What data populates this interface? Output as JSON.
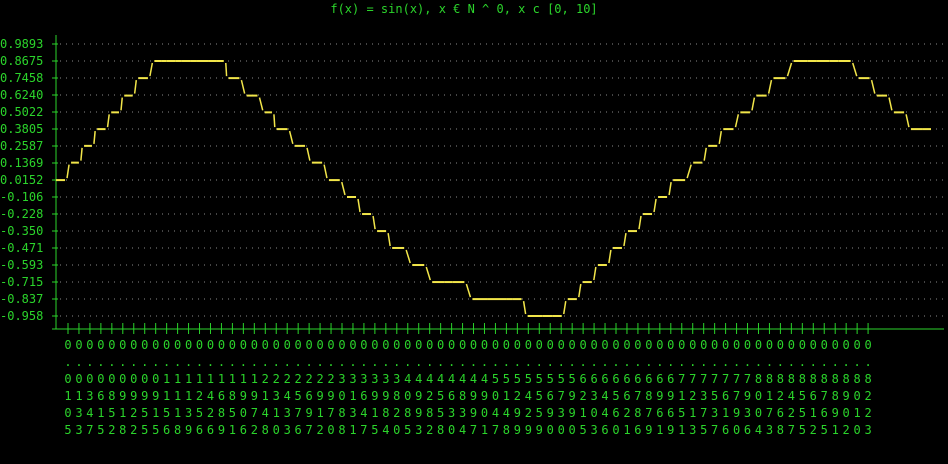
{
  "chart_data": {
    "type": "line",
    "title": "f(x) = sin(x),  x € N ^ 0, x c [0, 10]",
    "y_ticks": [
      "0.9893",
      "0.8675",
      "0.7458",
      "0.6240",
      "0.5022",
      "0.3805",
      "0.2587",
      "0.1369",
      "0.0152",
      "-0.106",
      "-0.228",
      "-0.350",
      "-0.471",
      "-0.593",
      "-0.715",
      "-0.837",
      "-0.958"
    ],
    "x_tick_columns": [
      "0.0105",
      "0.0133",
      "0.0347",
      "0.0615",
      "0.0852",
      "0.0918",
      "0.0922",
      "0.0955",
      "0.0915",
      "0.1156",
      "0.1118",
      "0.1139",
      "0.1256",
      "0.1426",
      "0.1689",
      "0.1851",
      "0.1906",
      "0.1972",
      "0.2148",
      "0.2310",
      "0.2433",
      "0.2576",
      "0.2697",
      "0.2912",
      "0.2970",
      "0.3088",
      "0.3131",
      "0.3647",
      "0.3915",
      "0.3984",
      "0.3820",
      "0.4085",
      "0.4993",
      "0.4282",
      "0.4558",
      "0.4630",
      "0.4834",
      "0.4997",
      "0.4901",
      "0.5047",
      "0.5148",
      "0.5299",
      "0.5429",
      "0.5559",
      "0.5690",
      "0.5730",
      "0.5990",
      "0.6215",
      "0.6303",
      "0.6446",
      "0.6560",
      "0.6621",
      "0.6786",
      "0.6879",
      "0.6961",
      "0.6969",
      "0.7151",
      "0.7213",
      "0.7375",
      "0.7537",
      "0.7616",
      "0.7790",
      "0.7936",
      "0.8004",
      "0.8173",
      "0.8268",
      "0.8427",
      "0.8555",
      "0.8612",
      "0.8765",
      "0.8891",
      "0.8902",
      "0.8010",
      "0.8223"
    ],
    "points": [
      [
        0.0,
        0.015
      ],
      [
        0.15,
        0.14
      ],
      [
        0.28,
        0.26
      ],
      [
        0.41,
        0.38
      ],
      [
        0.55,
        0.5
      ],
      [
        0.68,
        0.62
      ],
      [
        0.82,
        0.745
      ],
      [
        0.98,
        0.8675
      ],
      [
        1.1,
        0.8675
      ],
      [
        1.25,
        0.8675
      ],
      [
        1.4,
        0.8675
      ],
      [
        1.6,
        0.8675
      ],
      [
        1.72,
        0.745
      ],
      [
        1.9,
        0.62
      ],
      [
        2.08,
        0.5
      ],
      [
        2.2,
        0.38
      ],
      [
        2.38,
        0.26
      ],
      [
        2.55,
        0.14
      ],
      [
        2.72,
        0.015
      ],
      [
        2.9,
        -0.106
      ],
      [
        3.05,
        -0.228
      ],
      [
        3.2,
        -0.35
      ],
      [
        3.35,
        -0.471
      ],
      [
        3.55,
        -0.593
      ],
      [
        3.75,
        -0.715
      ],
      [
        3.95,
        -0.715
      ],
      [
        4.15,
        -0.837
      ],
      [
        4.4,
        -0.837
      ],
      [
        4.55,
        -0.837
      ],
      [
        4.7,
        -0.958
      ],
      [
        4.95,
        -0.958
      ],
      [
        5.1,
        -0.837
      ],
      [
        5.25,
        -0.715
      ],
      [
        5.4,
        -0.593
      ],
      [
        5.55,
        -0.471
      ],
      [
        5.7,
        -0.35
      ],
      [
        5.85,
        -0.228
      ],
      [
        6.0,
        -0.106
      ],
      [
        6.15,
        0.015
      ],
      [
        6.35,
        0.14
      ],
      [
        6.5,
        0.26
      ],
      [
        6.65,
        0.38
      ],
      [
        6.82,
        0.5
      ],
      [
        6.98,
        0.62
      ],
      [
        7.15,
        0.745
      ],
      [
        7.35,
        0.8675
      ],
      [
        7.58,
        0.8675
      ],
      [
        7.8,
        0.8675
      ],
      [
        8.0,
        0.745
      ],
      [
        8.18,
        0.62
      ],
      [
        8.35,
        0.5
      ],
      [
        8.52,
        0.38
      ],
      [
        8.72,
        0.38
      ]
    ],
    "xlim": [
      0,
      8.75
    ],
    "ylim": [
      -1.02,
      1.05
    ],
    "grid": true
  }
}
